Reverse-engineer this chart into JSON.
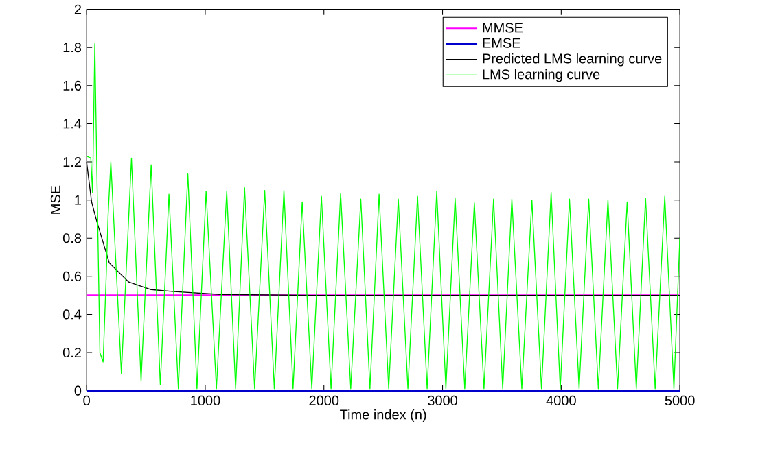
{
  "chart_data": {
    "type": "line",
    "xlabel": "Time index (n)",
    "ylabel": "MSE",
    "xlim": [
      0,
      5000
    ],
    "ylim": [
      0,
      2
    ],
    "xticks": [
      0,
      1000,
      2000,
      3000,
      4000,
      5000
    ],
    "yticks": [
      0,
      0.2,
      0.4,
      0.6,
      0.8,
      1,
      1.2,
      1.4,
      1.6,
      1.8,
      2
    ],
    "legend": "top right",
    "grid": false,
    "marker": "none",
    "line_style": "solid",
    "series": [
      {
        "name": "MMSE",
        "color": "#ff00ff",
        "x": [
          0,
          5000
        ],
        "values": [
          0.5,
          0.5
        ]
      },
      {
        "name": "EMSE",
        "color": "#0000cc",
        "x": [
          0,
          5000
        ],
        "values": [
          0,
          0
        ]
      },
      {
        "name": "Predicted LMS learning curve",
        "color": "#000000",
        "x": [
          0,
          42,
          80,
          191,
          355,
          544,
          737,
          1123,
          1900,
          5000
        ],
        "values": [
          1.2,
          0.99,
          0.9,
          0.67,
          0.57,
          0.53,
          0.52,
          0.505,
          0.5,
          0.5
        ]
      },
      {
        "name": "LMS learning curve",
        "color": "#00ff00",
        "x": [
          0,
          35,
          50,
          69,
          93,
          112,
          139,
          165,
          181,
          204,
          266,
          293,
          378,
          459,
          544,
          621,
          694,
          773,
          853,
          930,
          1007,
          1094,
          1181,
          1256,
          1331,
          1416,
          1501,
          1582,
          1663,
          1740,
          1817,
          1898,
          1979,
          2060,
          2141,
          2226,
          2311,
          2388,
          2465,
          2546,
          2627,
          2708,
          2789,
          2870,
          2951,
          3028,
          3106,
          3187,
          3268,
          3349,
          3430,
          3507,
          3584,
          3668,
          3753,
          3834,
          3915,
          3992,
          4070,
          4151,
          4232,
          4313,
          4394,
          4475,
          4556,
          4633,
          4711,
          4792,
          4873,
          4950,
          5000
        ],
        "values": [
          1.23,
          1.22,
          1.04,
          1.82,
          0.9,
          0.2,
          0.15,
          0.6,
          0.92,
          1.2,
          0.43,
          0.09,
          1.22,
          0.05,
          1.185,
          0.03,
          1.03,
          0.01,
          1.14,
          0.01,
          1.045,
          0.01,
          1.045,
          0.01,
          1.065,
          0.01,
          1.05,
          0.01,
          1.05,
          0.01,
          0.99,
          0.01,
          1.02,
          0.01,
          1.035,
          0.01,
          1.005,
          0.01,
          1.03,
          0.01,
          1.005,
          0.01,
          1.02,
          0.01,
          1.045,
          0.01,
          1.01,
          0.01,
          0.985,
          0.01,
          1.005,
          0.01,
          1.005,
          0.01,
          1.0,
          0.01,
          1.04,
          0.01,
          1.005,
          0.01,
          1.005,
          0.01,
          1.0,
          0.01,
          0.99,
          0.01,
          1.01,
          0.01,
          1.02,
          0.01,
          0.8
        ]
      }
    ]
  }
}
